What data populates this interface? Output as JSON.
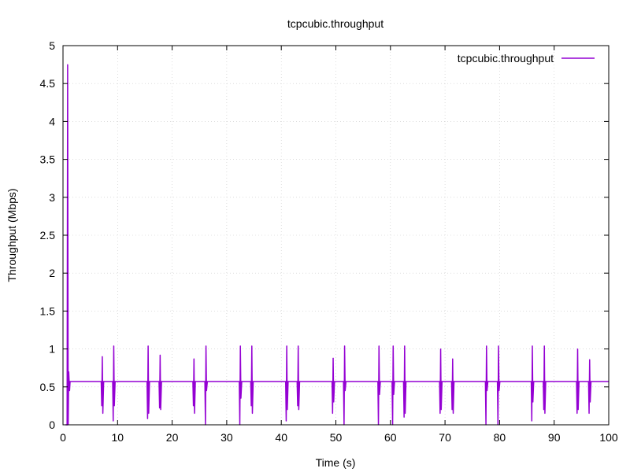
{
  "chart_data": {
    "type": "line",
    "title": "tcpcubic.throughput",
    "xlabel": "Time (s)",
    "ylabel": "Throughput (Mbps)",
    "xlim": [
      0,
      100
    ],
    "ylim": [
      0,
      5
    ],
    "x_ticks": [
      "0",
      "10",
      "20",
      "30",
      "40",
      "50",
      "60",
      "70",
      "80",
      "90",
      "100"
    ],
    "y_ticks": [
      "0",
      "0.5",
      "1",
      "1.5",
      "2",
      "2.5",
      "3",
      "3.5",
      "4",
      "4.5",
      "5"
    ],
    "grid": true,
    "legend_position": "top-right",
    "colors": {
      "series": "#9400d3",
      "grid": "#c8c8c8",
      "axis": "#000000"
    },
    "series": [
      {
        "name": "tcpcubic.throughput",
        "baseline": 0.57,
        "points": [
          [
            0.5,
            0
          ],
          [
            0.75,
            0
          ],
          [
            0.85,
            4.75
          ],
          [
            0.95,
            0
          ],
          [
            1.05,
            0.7
          ],
          [
            1.2,
            0.45
          ],
          [
            1.3,
            0.57
          ],
          [
            7.0,
            0.57
          ],
          [
            7.1,
            0.25
          ],
          [
            7.2,
            0.9
          ],
          [
            7.3,
            0.15
          ],
          [
            7.45,
            0.57
          ],
          [
            9.1,
            0.57
          ],
          [
            9.2,
            0.05
          ],
          [
            9.3,
            1.04
          ],
          [
            9.4,
            0.25
          ],
          [
            9.55,
            0.57
          ],
          [
            15.4,
            0.57
          ],
          [
            15.5,
            0.08
          ],
          [
            15.6,
            1.04
          ],
          [
            15.7,
            0.15
          ],
          [
            15.85,
            0.57
          ],
          [
            17.6,
            0.57
          ],
          [
            17.7,
            0.22
          ],
          [
            17.8,
            0.92
          ],
          [
            17.9,
            0.2
          ],
          [
            18.05,
            0.57
          ],
          [
            23.8,
            0.57
          ],
          [
            23.9,
            0.25
          ],
          [
            24.0,
            0.87
          ],
          [
            24.1,
            0.15
          ],
          [
            24.25,
            0.57
          ],
          [
            26.0,
            0.57
          ],
          [
            26.1,
            0
          ],
          [
            26.2,
            1.04
          ],
          [
            26.3,
            0.45
          ],
          [
            26.45,
            0.57
          ],
          [
            32.3,
            0.57
          ],
          [
            32.4,
            0
          ],
          [
            32.5,
            1.04
          ],
          [
            32.6,
            0.35
          ],
          [
            32.75,
            0.57
          ],
          [
            34.4,
            0.57
          ],
          [
            34.5,
            0.25
          ],
          [
            34.6,
            1.04
          ],
          [
            34.7,
            0.15
          ],
          [
            34.85,
            0.57
          ],
          [
            40.8,
            0.57
          ],
          [
            40.9,
            0.05
          ],
          [
            41.0,
            1.04
          ],
          [
            41.1,
            0.2
          ],
          [
            41.25,
            0.57
          ],
          [
            42.9,
            0.57
          ],
          [
            43.0,
            0.25
          ],
          [
            43.1,
            1.04
          ],
          [
            43.2,
            0.2
          ],
          [
            43.35,
            0.57
          ],
          [
            49.3,
            0.57
          ],
          [
            49.4,
            0.15
          ],
          [
            49.5,
            0.88
          ],
          [
            49.6,
            0.3
          ],
          [
            49.75,
            0.57
          ],
          [
            51.4,
            0.57
          ],
          [
            51.5,
            0
          ],
          [
            51.6,
            1.04
          ],
          [
            51.7,
            0.45
          ],
          [
            51.85,
            0.57
          ],
          [
            57.7,
            0.57
          ],
          [
            57.8,
            0
          ],
          [
            57.9,
            1.04
          ],
          [
            58.0,
            0.4
          ],
          [
            58.15,
            0.57
          ],
          [
            60.3,
            0.57
          ],
          [
            60.4,
            0
          ],
          [
            60.5,
            1.04
          ],
          [
            60.6,
            0.4
          ],
          [
            60.75,
            0.57
          ],
          [
            62.4,
            0.57
          ],
          [
            62.5,
            0.1
          ],
          [
            62.6,
            1.04
          ],
          [
            62.7,
            0.15
          ],
          [
            62.85,
            0.57
          ],
          [
            69.0,
            0.57
          ],
          [
            69.1,
            0.15
          ],
          [
            69.2,
            1.0
          ],
          [
            69.3,
            0.2
          ],
          [
            69.45,
            0.57
          ],
          [
            71.2,
            0.57
          ],
          [
            71.3,
            0.2
          ],
          [
            71.4,
            0.87
          ],
          [
            71.5,
            0.15
          ],
          [
            71.65,
            0.57
          ],
          [
            77.4,
            0.57
          ],
          [
            77.5,
            0
          ],
          [
            77.6,
            1.04
          ],
          [
            77.7,
            0.45
          ],
          [
            77.85,
            0.57
          ],
          [
            79.6,
            0.57
          ],
          [
            79.7,
            0
          ],
          [
            79.8,
            1.04
          ],
          [
            79.9,
            0.45
          ],
          [
            80.05,
            0.57
          ],
          [
            85.8,
            0.57
          ],
          [
            85.9,
            0.05
          ],
          [
            86.0,
            1.04
          ],
          [
            86.1,
            0.3
          ],
          [
            86.25,
            0.57
          ],
          [
            88.0,
            0.57
          ],
          [
            88.1,
            0.2
          ],
          [
            88.2,
            1.04
          ],
          [
            88.3,
            0.15
          ],
          [
            88.45,
            0.57
          ],
          [
            94.1,
            0.57
          ],
          [
            94.2,
            0.15
          ],
          [
            94.3,
            1.0
          ],
          [
            94.4,
            0.2
          ],
          [
            94.55,
            0.57
          ],
          [
            96.3,
            0.57
          ],
          [
            96.4,
            0.15
          ],
          [
            96.5,
            0.86
          ],
          [
            96.6,
            0.3
          ],
          [
            96.75,
            0.57
          ],
          [
            100.0,
            0.57
          ]
        ]
      }
    ]
  }
}
